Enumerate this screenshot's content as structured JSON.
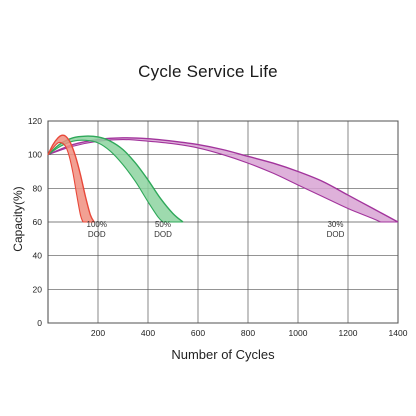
{
  "chart_data": {
    "type": "area",
    "title": "Cycle Service Life",
    "xlabel": "Number of Cycles",
    "ylabel": "Capacity(%)",
    "xlim": [
      0,
      1400
    ],
    "ylim": [
      0,
      120
    ],
    "xticks": [
      200,
      400,
      600,
      800,
      1000,
      1200,
      1400
    ],
    "yticks": [
      0,
      20,
      40,
      60,
      80,
      100,
      120
    ],
    "grid": true,
    "series": [
      {
        "name": "100% DOD",
        "label_lines": [
          "100%",
          "DOD"
        ],
        "label_at": [
          195,
          57
        ],
        "color": "#e8483a",
        "fill": "#f08f80",
        "upper": [
          [
            0,
            100
          ],
          [
            20,
            106
          ],
          [
            40,
            110
          ],
          [
            55,
            111.5
          ],
          [
            70,
            111
          ],
          [
            90,
            107
          ],
          [
            110,
            99
          ],
          [
            130,
            88
          ],
          [
            150,
            75
          ],
          [
            170,
            64
          ],
          [
            185,
            60
          ]
        ],
        "lower": [
          [
            0,
            100
          ],
          [
            20,
            104
          ],
          [
            40,
            107
          ],
          [
            55,
            107
          ],
          [
            70,
            105
          ],
          [
            85,
            99
          ],
          [
            100,
            89
          ],
          [
            115,
            76
          ],
          [
            130,
            64
          ],
          [
            140,
            60
          ]
        ]
      },
      {
        "name": "50% DOD",
        "label_lines": [
          "50%",
          "DOD"
        ],
        "label_at": [
          460,
          57
        ],
        "color": "#2fa85a",
        "fill": "#8dd4a0",
        "upper": [
          [
            0,
            100
          ],
          [
            50,
            106.5
          ],
          [
            100,
            110
          ],
          [
            150,
            111
          ],
          [
            200,
            110.5
          ],
          [
            250,
            108
          ],
          [
            300,
            103
          ],
          [
            350,
            95
          ],
          [
            400,
            85
          ],
          [
            450,
            74
          ],
          [
            500,
            65
          ],
          [
            540,
            60
          ]
        ],
        "lower": [
          [
            0,
            100
          ],
          [
            50,
            105
          ],
          [
            100,
            108
          ],
          [
            150,
            108.5
          ],
          [
            200,
            107
          ],
          [
            250,
            102
          ],
          [
            300,
            94
          ],
          [
            350,
            84
          ],
          [
            400,
            72
          ],
          [
            440,
            63
          ],
          [
            460,
            60
          ]
        ]
      },
      {
        "name": "30% DOD",
        "label_lines": [
          "30%",
          "DOD"
        ],
        "label_at": [
          1150,
          57
        ],
        "color": "#a2349c",
        "fill": "#d8a3d3",
        "upper": [
          [
            0,
            100
          ],
          [
            100,
            106
          ],
          [
            200,
            109
          ],
          [
            300,
            110
          ],
          [
            400,
            109.5
          ],
          [
            500,
            108
          ],
          [
            600,
            106
          ],
          [
            700,
            103
          ],
          [
            800,
            99
          ],
          [
            900,
            95
          ],
          [
            1000,
            90
          ],
          [
            1100,
            84
          ],
          [
            1200,
            76
          ],
          [
            1300,
            68
          ],
          [
            1400,
            60
          ]
        ],
        "lower": [
          [
            0,
            100
          ],
          [
            100,
            105
          ],
          [
            200,
            108
          ],
          [
            300,
            109
          ],
          [
            400,
            108
          ],
          [
            500,
            106.5
          ],
          [
            600,
            104
          ],
          [
            700,
            100
          ],
          [
            800,
            95
          ],
          [
            900,
            89
          ],
          [
            1000,
            82
          ],
          [
            1100,
            75
          ],
          [
            1200,
            68
          ],
          [
            1300,
            62
          ],
          [
            1330,
            60
          ]
        ]
      }
    ]
  }
}
